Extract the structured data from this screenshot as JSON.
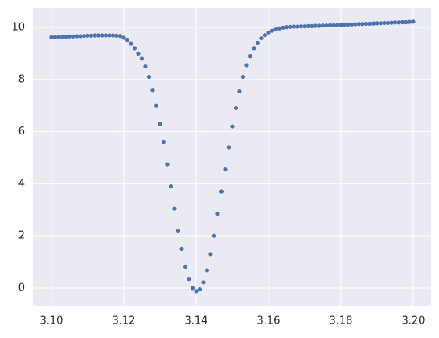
{
  "chart_data": {
    "type": "scatter",
    "color": "#4c72b0",
    "grid": true,
    "x": [
      3.1,
      3.101,
      3.102,
      3.103,
      3.104,
      3.105,
      3.106,
      3.107,
      3.108,
      3.109,
      3.11,
      3.111,
      3.112,
      3.113,
      3.114,
      3.115,
      3.116,
      3.117,
      3.118,
      3.119,
      3.12,
      3.121,
      3.122,
      3.123,
      3.124,
      3.125,
      3.126,
      3.127,
      3.128,
      3.129,
      3.13,
      3.131,
      3.132,
      3.133,
      3.134,
      3.135,
      3.136,
      3.137,
      3.138,
      3.139,
      3.14,
      3.141,
      3.142,
      3.143,
      3.144,
      3.145,
      3.146,
      3.147,
      3.148,
      3.149,
      3.15,
      3.151,
      3.152,
      3.153,
      3.154,
      3.155,
      3.156,
      3.157,
      3.158,
      3.159,
      3.16,
      3.161,
      3.162,
      3.163,
      3.164,
      3.165,
      3.166,
      3.167,
      3.168,
      3.169,
      3.17,
      3.171,
      3.172,
      3.173,
      3.174,
      3.175,
      3.176,
      3.177,
      3.178,
      3.179,
      3.18,
      3.181,
      3.182,
      3.183,
      3.184,
      3.185,
      3.186,
      3.187,
      3.188,
      3.189,
      3.19,
      3.191,
      3.192,
      3.193,
      3.194,
      3.195,
      3.196,
      3.197,
      3.198,
      3.199,
      3.2
    ],
    "values": [
      9.62,
      9.62,
      9.63,
      9.63,
      9.64,
      9.65,
      9.65,
      9.66,
      9.66,
      9.67,
      9.68,
      9.68,
      9.69,
      9.69,
      9.69,
      9.69,
      9.69,
      9.69,
      9.68,
      9.67,
      9.6,
      9.52,
      9.38,
      9.2,
      9.0,
      8.8,
      8.5,
      8.1,
      7.6,
      7.0,
      6.3,
      5.6,
      4.75,
      3.9,
      3.05,
      2.2,
      1.5,
      0.82,
      0.35,
      0.0,
      -0.12,
      -0.05,
      0.22,
      0.68,
      1.3,
      2.0,
      2.85,
      3.7,
      4.55,
      5.4,
      6.2,
      6.9,
      7.55,
      8.1,
      8.55,
      8.9,
      9.2,
      9.4,
      9.58,
      9.7,
      9.8,
      9.87,
      9.92,
      9.96,
      9.99,
      10.01,
      10.02,
      10.03,
      10.03,
      10.04,
      10.04,
      10.05,
      10.05,
      10.06,
      10.06,
      10.07,
      10.07,
      10.08,
      10.08,
      10.09,
      10.1,
      10.1,
      10.11,
      10.11,
      10.12,
      10.13,
      10.13,
      10.14,
      10.14,
      10.15,
      10.16,
      10.16,
      10.17,
      10.17,
      10.18,
      10.19,
      10.19,
      10.2,
      10.2,
      10.21,
      10.22
    ],
    "xlim": [
      3.0949,
      3.2049
    ],
    "ylim": [
      -0.68,
      10.74
    ],
    "xticks": [
      {
        "value": 3.1,
        "label": "3.10"
      },
      {
        "value": 3.12,
        "label": "3.12"
      },
      {
        "value": 3.14,
        "label": "3.14"
      },
      {
        "value": 3.16,
        "label": "3.16"
      },
      {
        "value": 3.18,
        "label": "3.18"
      },
      {
        "value": 3.2,
        "label": "3.20"
      }
    ],
    "yticks": [
      0,
      2,
      4,
      6,
      8,
      10
    ]
  }
}
